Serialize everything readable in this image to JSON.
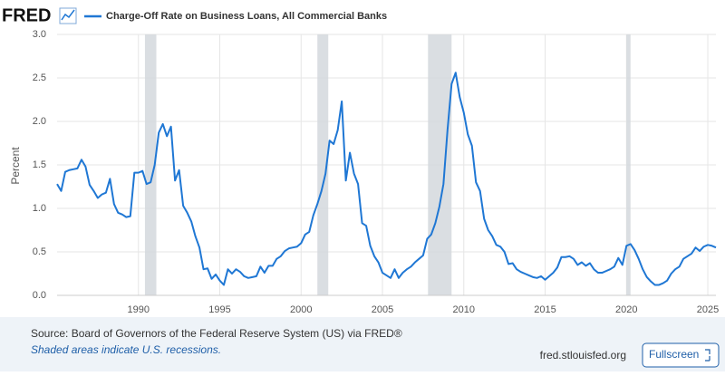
{
  "logo": "FRED",
  "source": "Source: Board of Governors of the Federal Reserve System (US) via FRED®",
  "note": "Shaded areas indicate U.S. recessions.",
  "site": "fred.stlouisfed.org",
  "button": "Fullscreen",
  "chart_data": {
    "type": "line",
    "ylabel": "Percent",
    "grid": true,
    "xlim": [
      1985,
      2025.5
    ],
    "xticks": [
      1990,
      1995,
      2000,
      2005,
      2010,
      2015,
      2020,
      2025
    ],
    "ylim": [
      0,
      3
    ],
    "yticks": [
      {
        "value": 0,
        "label": "0.0"
      },
      0.5,
      {
        "value": 1,
        "label": "1.0"
      },
      1.5,
      {
        "value": 2,
        "label": "2.0"
      },
      2.5,
      {
        "value": 3,
        "label": "3.0"
      }
    ],
    "recessions": [
      [
        1990.4,
        1991.1
      ],
      [
        2001.0,
        2001.67
      ],
      [
        2007.8,
        2009.25
      ],
      [
        2020.0,
        2020.25
      ]
    ],
    "x": [
      1985,
      1985.25,
      1985.5,
      1985.75,
      1986,
      1986.25,
      1986.5,
      1986.75,
      1987,
      1987.25,
      1987.5,
      1987.75,
      1988,
      1988.25,
      1988.5,
      1988.75,
      1989,
      1989.25,
      1989.5,
      1989.75,
      1990,
      1990.25,
      1990.5,
      1990.75,
      1991,
      1991.25,
      1991.5,
      1991.75,
      1992,
      1992.25,
      1992.5,
      1992.75,
      1993,
      1993.25,
      1993.5,
      1993.75,
      1994,
      1994.25,
      1994.5,
      1994.75,
      1995,
      1995.25,
      1995.5,
      1995.75,
      1996,
      1996.25,
      1996.5,
      1996.75,
      1997,
      1997.25,
      1997.5,
      1997.75,
      1998,
      1998.25,
      1998.5,
      1998.75,
      1999,
      1999.25,
      1999.5,
      1999.75,
      2000,
      2000.25,
      2000.5,
      2000.75,
      2001,
      2001.25,
      2001.5,
      2001.75,
      2002,
      2002.25,
      2002.5,
      2002.75,
      2003,
      2003.25,
      2003.5,
      2003.75,
      2004,
      2004.25,
      2004.5,
      2004.75,
      2005,
      2005.25,
      2005.5,
      2005.75,
      2006,
      2006.25,
      2006.5,
      2006.75,
      2007,
      2007.25,
      2007.5,
      2007.75,
      2008,
      2008.25,
      2008.5,
      2008.75,
      2009,
      2009.25,
      2009.5,
      2009.75,
      2010,
      2010.25,
      2010.5,
      2010.75,
      2011,
      2011.25,
      2011.5,
      2011.75,
      2012,
      2012.25,
      2012.5,
      2012.75,
      2013,
      2013.25,
      2013.5,
      2013.75,
      2014,
      2014.25,
      2014.5,
      2014.75,
      2015,
      2015.25,
      2015.5,
      2015.75,
      2016,
      2016.25,
      2016.5,
      2016.75,
      2017,
      2017.25,
      2017.5,
      2017.75,
      2018,
      2018.25,
      2018.5,
      2018.75,
      2019,
      2019.25,
      2019.5,
      2019.75,
      2020,
      2020.25,
      2020.5,
      2020.75,
      2021,
      2021.25,
      2021.5,
      2021.75,
      2022,
      2022.25,
      2022.5,
      2022.75,
      2023,
      2023.25,
      2023.5,
      2023.75,
      2024,
      2024.25,
      2024.5,
      2024.75,
      2025,
      2025.25,
      2025.5
    ],
    "series": [
      {
        "name": "Charge-Off Rate on Business Loans, All Commercial Banks",
        "color": "#1f77d4",
        "values": [
          1.28,
          1.2,
          1.42,
          1.44,
          1.45,
          1.46,
          1.56,
          1.48,
          1.27,
          1.2,
          1.12,
          1.16,
          1.18,
          1.34,
          1.05,
          0.95,
          0.93,
          0.9,
          0.91,
          1.41,
          1.41,
          1.43,
          1.28,
          1.3,
          1.5,
          1.87,
          1.97,
          1.83,
          1.94,
          1.32,
          1.44,
          1.03,
          0.95,
          0.85,
          0.68,
          0.55,
          0.3,
          0.31,
          0.19,
          0.24,
          0.17,
          0.12,
          0.3,
          0.25,
          0.3,
          0.27,
          0.22,
          0.2,
          0.21,
          0.22,
          0.33,
          0.26,
          0.34,
          0.34,
          0.42,
          0.45,
          0.51,
          0.54,
          0.55,
          0.56,
          0.6,
          0.7,
          0.73,
          0.92,
          1.05,
          1.2,
          1.4,
          1.78,
          1.74,
          1.9,
          2.23,
          1.32,
          1.64,
          1.4,
          1.28,
          0.83,
          0.8,
          0.57,
          0.45,
          0.38,
          0.26,
          0.23,
          0.2,
          0.3,
          0.2,
          0.26,
          0.3,
          0.33,
          0.38,
          0.42,
          0.46,
          0.65,
          0.7,
          0.83,
          1.02,
          1.28,
          1.9,
          2.43,
          2.56,
          2.28,
          2.1,
          1.85,
          1.72,
          1.3,
          1.2,
          0.88,
          0.75,
          0.68,
          0.58,
          0.56,
          0.5,
          0.36,
          0.37,
          0.3,
          0.27,
          0.25,
          0.23,
          0.21,
          0.2,
          0.22,
          0.18,
          0.22,
          0.26,
          0.32,
          0.44,
          0.44,
          0.45,
          0.42,
          0.35,
          0.38,
          0.34,
          0.37,
          0.3,
          0.26,
          0.26,
          0.28,
          0.3,
          0.33,
          0.43,
          0.35,
          0.57,
          0.59,
          0.52,
          0.42,
          0.3,
          0.21,
          0.16,
          0.12,
          0.12,
          0.14,
          0.17,
          0.25,
          0.3,
          0.33,
          0.42,
          0.45,
          0.48,
          0.55,
          0.51,
          0.56,
          0.58,
          0.57,
          0.55
        ]
      }
    ]
  }
}
